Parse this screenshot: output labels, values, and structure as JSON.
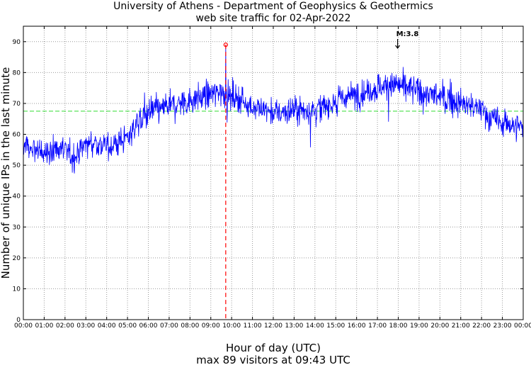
{
  "chart_data": {
    "type": "line",
    "title_line1": "University of Athens - Department of Geophysics & Geothermics",
    "title_line2": "web site traffic for 02-Apr-2022",
    "xlabel": "Hour of day (UTC)",
    "subtitle": "max 89 visitors at 09:43 UTC",
    "ylabel": "Number of unique IPs in the last minute",
    "xlim": [
      0,
      24
    ],
    "ylim": [
      0,
      95
    ],
    "x_ticks": [
      "00:00",
      "01:00",
      "02:00",
      "03:00",
      "04:00",
      "05:00",
      "06:00",
      "07:00",
      "08:00",
      "09:00",
      "10:00",
      "11:00",
      "12:00",
      "13:00",
      "14:00",
      "15:00",
      "16:00",
      "17:00",
      "18:00",
      "19:00",
      "20:00",
      "21:00",
      "22:00",
      "23:00",
      "00:00"
    ],
    "y_ticks": [
      0,
      10,
      20,
      30,
      40,
      50,
      60,
      70,
      80,
      90
    ],
    "grid": true,
    "series": [
      {
        "name": "unique IPs per minute",
        "color": "#0000ff",
        "x_hours": [
          0,
          0.5,
          1,
          1.5,
          2,
          2.5,
          3,
          3.5,
          4,
          4.5,
          5,
          5.5,
          6,
          6.5,
          7,
          7.5,
          8,
          8.5,
          9,
          9.5,
          10,
          10.5,
          11,
          11.5,
          12,
          12.5,
          13,
          13.5,
          14,
          14.5,
          15,
          15.5,
          16,
          16.5,
          17,
          17.5,
          18,
          18.5,
          19,
          19.5,
          20,
          20.5,
          21,
          21.5,
          22,
          22.5,
          23,
          23.5,
          24
        ],
        "values": [
          57,
          55,
          54,
          55,
          55,
          53,
          57,
          57,
          56,
          57,
          59,
          64,
          67,
          68,
          69,
          70,
          71,
          72,
          73,
          74,
          72,
          71,
          69,
          68,
          67,
          67,
          68,
          68,
          68,
          69,
          71,
          72,
          73,
          74,
          75,
          76,
          76,
          75,
          74,
          73,
          72,
          71,
          70,
          69,
          68,
          65,
          64,
          63,
          62
        ]
      }
    ],
    "mean_line": {
      "value": 67.5,
      "color": "#33dd33"
    },
    "max_point": {
      "time": "09:43",
      "hour": 9.7167,
      "value": 89,
      "color": "#ff0000"
    },
    "annotation": {
      "label": "M:3.8",
      "hour": 17.97
    }
  }
}
